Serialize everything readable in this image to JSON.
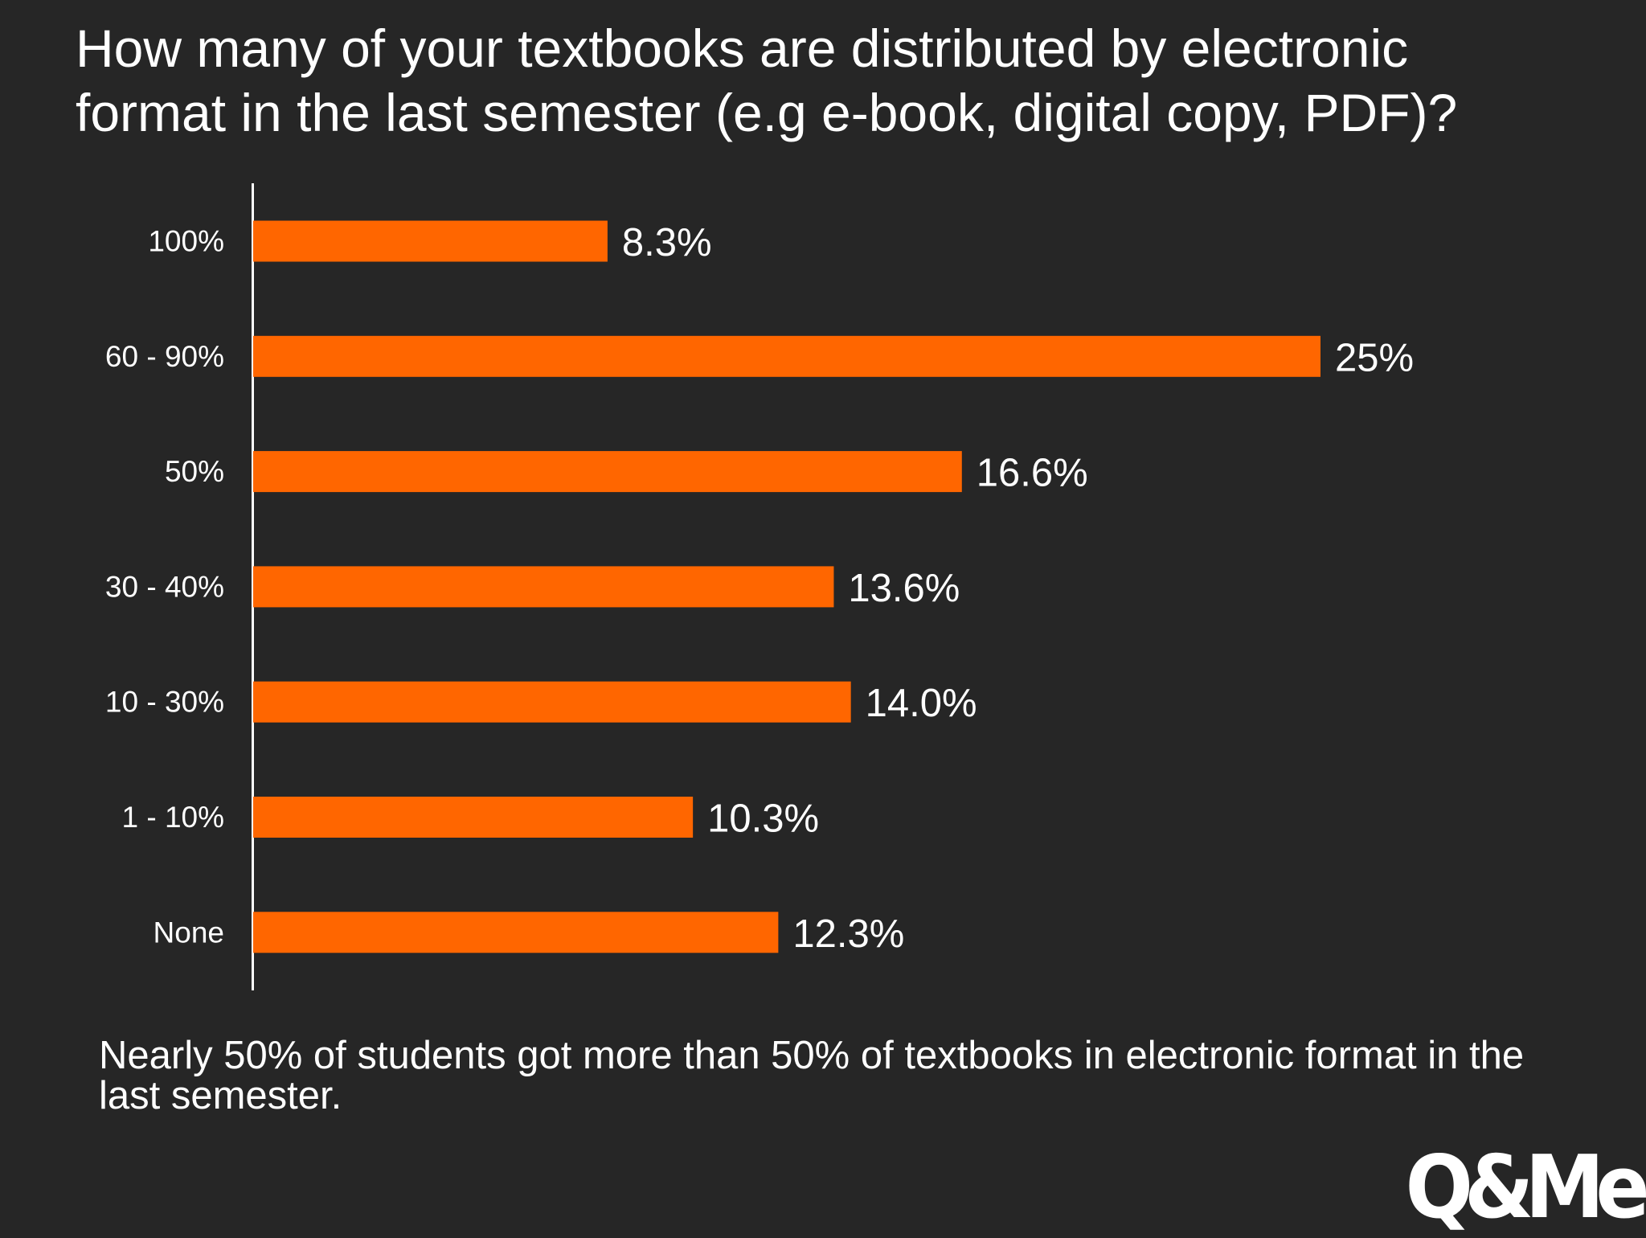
{
  "title": "How many of your textbooks are distributed by electronic\nformat in the last semester (e.g e-book, digital copy, PDF)?",
  "caption": "Nearly 50% of students got more than 50% of textbooks in electronic format in the last semester.",
  "logo_text": "Q&Me",
  "colors": {
    "background": "#262626",
    "bar": "#ff6600",
    "text": "#ffffff",
    "axis": "#ffffff"
  },
  "chart_data": {
    "type": "bar",
    "orientation": "horizontal",
    "categories": [
      "100%",
      "60 - 90%",
      "50%",
      "30 - 40%",
      "10 - 30%",
      "1 - 10%",
      "None"
    ],
    "values": [
      8.3,
      25,
      16.6,
      13.6,
      14.0,
      10.3,
      12.3
    ],
    "value_labels": [
      "8.3%",
      "25%",
      "16.6%",
      "13.6%",
      "14.0%",
      "10.3%",
      "12.3%"
    ],
    "title": "How many of your textbooks are distributed by electronic format in the last semester (e.g e-book, digital copy, PDF)?",
    "xlabel": "",
    "ylabel": "",
    "xlim": [
      0,
      25
    ],
    "grid": false,
    "legend": "none"
  }
}
